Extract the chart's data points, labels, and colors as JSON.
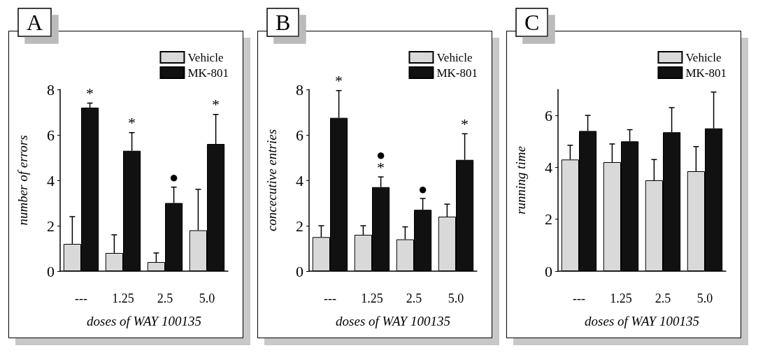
{
  "chart_data": [
    {
      "type": "bar",
      "title": "A",
      "xlabel": "doses of WAY 100135",
      "ylabel": "number of errors",
      "categories": [
        "---",
        "1.25",
        "2.5",
        "5.0"
      ],
      "ylim": [
        0,
        8
      ],
      "yticks": [
        0,
        2,
        4,
        6,
        8
      ],
      "grid": false,
      "legend": "top right",
      "series": [
        {
          "name": "Vehicle",
          "color": "#d9d9d9",
          "values": [
            1.2,
            0.8,
            0.4,
            1.8
          ],
          "errors": [
            [
              1.2,
              2.4
            ],
            [
              0.8,
              1.6
            ],
            [
              0.4,
              0.8
            ],
            [
              1.8,
              3.6
            ]
          ]
        },
        {
          "name": "MK-801",
          "color": "#111111",
          "values": [
            7.2,
            5.3,
            3.0,
            5.6
          ],
          "errors": [
            [
              7.2,
              7.4
            ],
            [
              5.3,
              6.1
            ],
            [
              3.0,
              3.7
            ],
            [
              5.6,
              6.9
            ]
          ],
          "value_labels": [
            "*",
            "*",
            "●",
            "*"
          ]
        }
      ]
    },
    {
      "type": "bar",
      "title": "B",
      "xlabel": "doses of WAY 100135",
      "ylabel": "concecutive entries",
      "categories": [
        "---",
        "1.25",
        "2.5",
        "5.0"
      ],
      "ylim": [
        0,
        8
      ],
      "yticks": [
        0,
        2,
        4,
        6,
        8
      ],
      "grid": false,
      "legend": "top right",
      "series": [
        {
          "name": "Vehicle",
          "color": "#d9d9d9",
          "values": [
            1.5,
            1.6,
            1.4,
            2.4
          ],
          "errors": [
            [
              1.5,
              2.0
            ],
            [
              1.6,
              2.0
            ],
            [
              1.4,
              1.95
            ],
            [
              2.4,
              2.95
            ]
          ]
        },
        {
          "name": "MK-801",
          "color": "#111111",
          "values": [
            6.75,
            3.7,
            2.7,
            4.9
          ],
          "errors": [
            [
              6.75,
              7.95
            ],
            [
              3.7,
              4.15
            ],
            [
              2.7,
              3.2
            ],
            [
              4.9,
              6.05
            ]
          ],
          "value_labels": [
            "*",
            "●\n*",
            "●",
            "*"
          ]
        }
      ]
    },
    {
      "type": "bar",
      "title": "C",
      "xlabel": "doses of WAY 100135",
      "ylabel": "running time",
      "categories": [
        "---",
        "1.25",
        "2.5",
        "5.0"
      ],
      "ylim": [
        0,
        7
      ],
      "yticks": [
        0,
        2,
        4,
        6
      ],
      "grid": false,
      "legend": "top right",
      "series": [
        {
          "name": "Vehicle",
          "color": "#d9d9d9",
          "values": [
            4.3,
            4.2,
            3.5,
            3.85
          ],
          "errors": [
            [
              4.3,
              4.85
            ],
            [
              4.2,
              4.9
            ],
            [
              3.5,
              4.3
            ],
            [
              3.85,
              4.8
            ]
          ]
        },
        {
          "name": "MK-801",
          "color": "#111111",
          "values": [
            5.4,
            5.0,
            5.35,
            5.5
          ],
          "errors": [
            [
              5.4,
              6.0
            ],
            [
              5.0,
              5.45
            ],
            [
              5.35,
              6.3
            ],
            [
              5.5,
              6.9
            ]
          ]
        }
      ]
    }
  ]
}
